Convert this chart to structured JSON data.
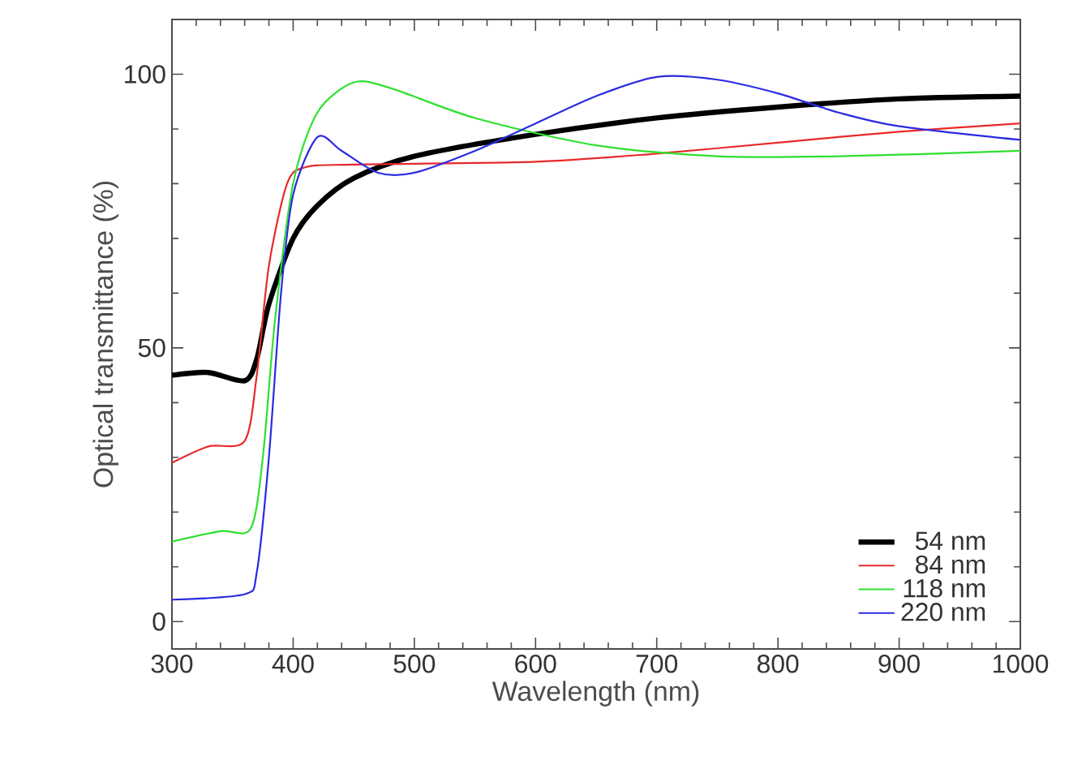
{
  "chart_data": {
    "type": "line",
    "xlabel": "Wavelength (nm)",
    "ylabel": "Optical transmittance (%)",
    "xlim": [
      300,
      1000
    ],
    "ylim": [
      -5,
      110
    ],
    "xticks": [
      300,
      400,
      500,
      600,
      700,
      800,
      900,
      1000
    ],
    "yticks": [
      0,
      50,
      100
    ],
    "legend": "bottom right",
    "grid": false,
    "marker": "none",
    "line_style": "solid",
    "series": [
      {
        "name": "54 nm",
        "color": "#000000",
        "x": [
          300,
          330,
          360,
          370,
          380,
          400,
          420,
          450,
          500,
          600,
          700,
          800,
          900,
          1000
        ],
        "values": [
          45,
          45.5,
          44,
          48,
          58,
          70,
          76,
          81,
          85,
          89,
          92,
          94,
          95.5,
          96
        ]
      },
      {
        "name": "84 nm",
        "color": "#e8292a",
        "x": [
          300,
          330,
          360,
          370,
          380,
          395,
          410,
          450,
          600,
          700,
          800,
          900,
          1000
        ],
        "values": [
          29,
          32,
          33,
          45,
          65,
          80,
          83,
          83.5,
          84,
          85.5,
          87.5,
          89.5,
          91
        ]
      },
      {
        "name": "118 nm",
        "color": "#2fe02f",
        "x": [
          300,
          340,
          365,
          375,
          385,
          400,
          420,
          450,
          480,
          550,
          650,
          750,
          850,
          1000
        ],
        "values": [
          14.6,
          16.5,
          17,
          30,
          55,
          80,
          93,
          98.5,
          97.5,
          92,
          87,
          85,
          85,
          86
        ]
      },
      {
        "name": "220 nm",
        "color": "#2a2ae0",
        "x": [
          300,
          360,
          370,
          380,
          390,
          400,
          420,
          440,
          470,
          500,
          550,
          600,
          650,
          700,
          750,
          800,
          850,
          900,
          1000
        ],
        "values": [
          4,
          5,
          9,
          30,
          60,
          78,
          88.5,
          86,
          82,
          82,
          86,
          91,
          96,
          99.5,
          99,
          96.5,
          93,
          90.5,
          88
        ]
      }
    ]
  }
}
